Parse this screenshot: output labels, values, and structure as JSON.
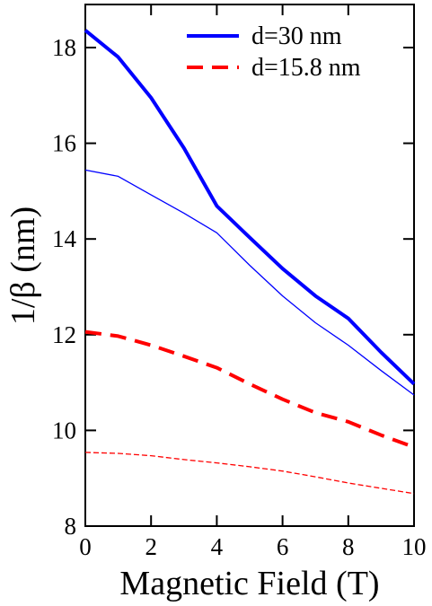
{
  "chart_data": {
    "type": "line",
    "x_label": "Magnetic Field (T)",
    "y_label": "1/β  (nm)",
    "x": [
      0,
      1,
      2,
      3,
      4,
      5,
      6,
      7,
      8,
      9,
      10
    ],
    "series": [
      {
        "name": "d=30 nm",
        "color": "#0000ff",
        "width": 4,
        "dashed": false,
        "values": [
          18.36,
          17.8,
          16.95,
          15.9,
          14.69,
          14.03,
          13.38,
          12.81,
          12.34,
          11.63,
          10.97
        ]
      },
      {
        "color": "#0000ff",
        "width": 1.3,
        "dashed": false,
        "values": [
          15.44,
          15.31,
          14.92,
          14.54,
          14.13,
          13.45,
          12.81,
          12.25,
          11.78,
          11.25,
          10.74
        ]
      },
      {
        "name": "d=15.8 nm",
        "color": "#ff0000",
        "width": 4,
        "dashed": true,
        "values": [
          12.06,
          11.97,
          11.78,
          11.55,
          11.31,
          10.97,
          10.65,
          10.37,
          10.18,
          9.9,
          9.65
        ]
      },
      {
        "color": "#ff0000",
        "width": 1.3,
        "dashed": true,
        "values": [
          9.54,
          9.52,
          9.47,
          9.39,
          9.32,
          9.24,
          9.15,
          9.03,
          8.9,
          8.79,
          8.68
        ]
      }
    ],
    "xlim": [
      0,
      10
    ],
    "xticks": [
      0,
      2,
      4,
      6,
      8,
      10
    ],
    "ylim": [
      8,
      18.9
    ],
    "yticks": [
      8,
      10,
      12,
      14,
      16,
      18
    ],
    "grid": false
  }
}
